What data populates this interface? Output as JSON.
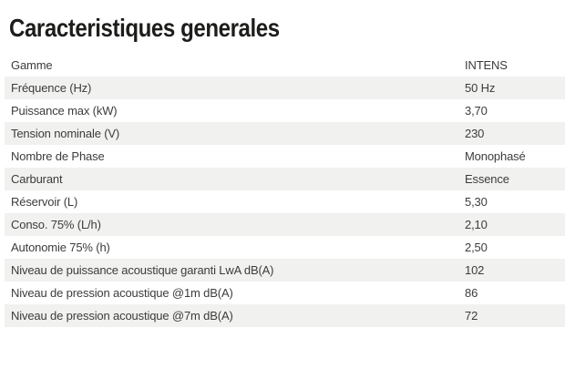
{
  "title": "Caracteristiques generales",
  "table": {
    "rows": [
      {
        "label": "Gamme",
        "value": "INTENS"
      },
      {
        "label": "Fréquence (Hz)",
        "value": "50 Hz"
      },
      {
        "label": "Puissance max (kW)",
        "value": "3,70"
      },
      {
        "label": "Tension nominale (V)",
        "value": "230"
      },
      {
        "label": "Nombre de Phase",
        "value": "Monophasé"
      },
      {
        "label": "Carburant",
        "value": "Essence"
      },
      {
        "label": "Réservoir (L)",
        "value": "5,30"
      },
      {
        "label": "Conso. 75% (L/h)",
        "value": "2,10"
      },
      {
        "label": "Autonomie 75% (h)",
        "value": "2,50"
      },
      {
        "label": "Niveau de puissance acoustique garanti LwA dB(A)",
        "value": "102"
      },
      {
        "label": "Niveau de pression acoustique @1m dB(A)",
        "value": "86"
      },
      {
        "label": "Niveau de pression acoustique @7m dB(A)",
        "value": "72"
      }
    ]
  },
  "colors": {
    "background": "#ffffff",
    "stripe": "#f1f1f0",
    "text": "#3c3c3b",
    "title": "#1d1d1b"
  }
}
